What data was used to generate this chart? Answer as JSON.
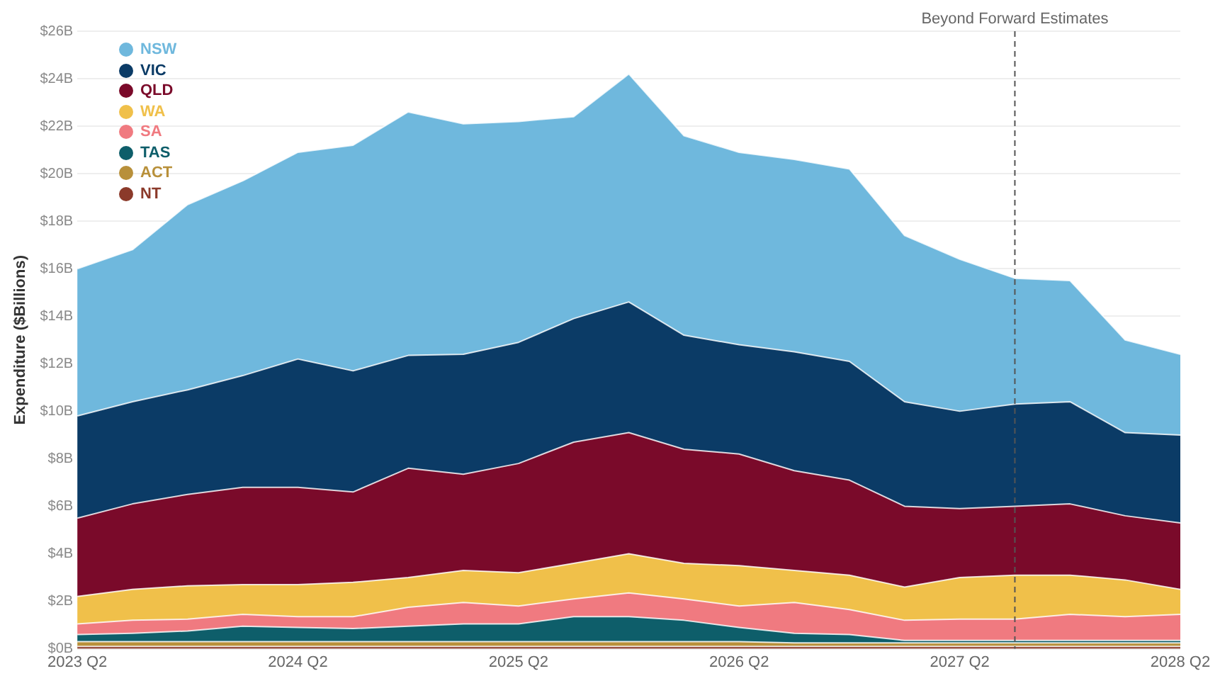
{
  "chart_data": {
    "type": "area",
    "stacked": true,
    "ylabel": "Expenditure ($Billions)",
    "x": [
      "2023-04",
      "2023-07",
      "2023-10",
      "2024-01",
      "2024-04",
      "2024-07",
      "2024-10",
      "2025-01",
      "2025-04",
      "2025-07",
      "2025-10",
      "2026-01",
      "2026-04",
      "2026-07",
      "2026-10",
      "2027-01",
      "2027-04",
      "2027-07",
      "2027-10",
      "2028-01",
      "2028-04"
    ],
    "xlim": [
      "2023-04",
      "2028-04"
    ],
    "xticks": [
      {
        "value": "2023-04",
        "label": "2023 Q2"
      },
      {
        "value": "2024-04",
        "label": "2024 Q2"
      },
      {
        "value": "2025-04",
        "label": "2025 Q2"
      },
      {
        "value": "2026-04",
        "label": "2026 Q2"
      },
      {
        "value": "2027-04",
        "label": "2027 Q2"
      },
      {
        "value": "2028-04",
        "label": "2028 Q2"
      }
    ],
    "ylim": [
      0,
      26
    ],
    "yticks": [
      {
        "value": 0,
        "label": "$0B"
      },
      {
        "value": 2,
        "label": "$2B"
      },
      {
        "value": 4,
        "label": "$4B"
      },
      {
        "value": 6,
        "label": "$6B"
      },
      {
        "value": 8,
        "label": "$8B"
      },
      {
        "value": 10,
        "label": "$10B"
      },
      {
        "value": 12,
        "label": "$12B"
      },
      {
        "value": 14,
        "label": "$14B"
      },
      {
        "value": 16,
        "label": "$16B"
      },
      {
        "value": 18,
        "label": "$18B"
      },
      {
        "value": 20,
        "label": "$20B"
      },
      {
        "value": 22,
        "label": "$22B"
      },
      {
        "value": 24,
        "label": "$24B"
      },
      {
        "value": 26,
        "label": "$26B"
      }
    ],
    "grid": "y",
    "legend": "top left",
    "ref_lines": [
      {
        "axis": "x",
        "value": "2027-07",
        "label": "Beyond Forward Estimates",
        "color": "#555555",
        "line_style": "dashed"
      }
    ],
    "series": [
      {
        "name": "NT",
        "color": "#8b3a2a",
        "values": [
          0.1,
          0.1,
          0.1,
          0.1,
          0.1,
          0.1,
          0.1,
          0.1,
          0.1,
          0.1,
          0.1,
          0.1,
          0.1,
          0.1,
          0.1,
          0.1,
          0.1,
          0.1,
          0.1,
          0.1,
          0.1
        ]
      },
      {
        "name": "ACT",
        "color": "#b8903a",
        "values": [
          0.2,
          0.2,
          0.2,
          0.2,
          0.2,
          0.2,
          0.2,
          0.2,
          0.2,
          0.2,
          0.2,
          0.2,
          0.2,
          0.15,
          0.15,
          0.15,
          0.15,
          0.15,
          0.15,
          0.15,
          0.15
        ]
      },
      {
        "name": "TAS",
        "color": "#0e5e6a",
        "values": [
          0.3,
          0.35,
          0.45,
          0.65,
          0.6,
          0.55,
          0.65,
          0.75,
          0.75,
          1.05,
          1.05,
          0.9,
          0.6,
          0.4,
          0.35,
          0.1,
          0.1,
          0.1,
          0.1,
          0.1,
          0.1
        ]
      },
      {
        "name": "SA",
        "color": "#f07a80",
        "values": [
          0.45,
          0.55,
          0.5,
          0.5,
          0.45,
          0.5,
          0.8,
          0.9,
          0.75,
          0.75,
          1.0,
          0.9,
          0.9,
          1.3,
          1.05,
          0.85,
          0.9,
          0.9,
          1.1,
          1.0,
          1.1
        ]
      },
      {
        "name": "WA",
        "color": "#f0c04a",
        "values": [
          1.15,
          1.3,
          1.4,
          1.25,
          1.35,
          1.45,
          1.25,
          1.35,
          1.4,
          1.5,
          1.65,
          1.5,
          1.7,
          1.35,
          1.45,
          1.4,
          1.75,
          1.85,
          1.65,
          1.55,
          1.05
        ]
      },
      {
        "name": "QLD",
        "color": "#7a0a2a",
        "values": [
          3.3,
          3.6,
          3.85,
          4.1,
          4.1,
          3.8,
          4.6,
          4.05,
          4.6,
          5.1,
          5.1,
          4.8,
          4.7,
          4.2,
          4.0,
          3.4,
          2.9,
          2.9,
          3.0,
          2.7,
          2.8
        ]
      },
      {
        "name": "VIC",
        "color": "#0b3b66",
        "values": [
          4.3,
          4.3,
          4.4,
          4.7,
          5.4,
          5.1,
          4.75,
          5.05,
          5.1,
          5.2,
          5.5,
          4.8,
          4.6,
          5.0,
          5.0,
          4.4,
          4.1,
          4.3,
          4.3,
          3.5,
          3.7
        ]
      },
      {
        "name": "NSW",
        "color": "#6fb8dd",
        "values": [
          6.2,
          6.4,
          7.8,
          8.2,
          8.7,
          9.5,
          10.25,
          9.7,
          9.3,
          8.5,
          9.6,
          8.4,
          8.1,
          8.1,
          8.1,
          7.0,
          6.4,
          5.3,
          5.1,
          3.9,
          3.4
        ]
      }
    ]
  }
}
